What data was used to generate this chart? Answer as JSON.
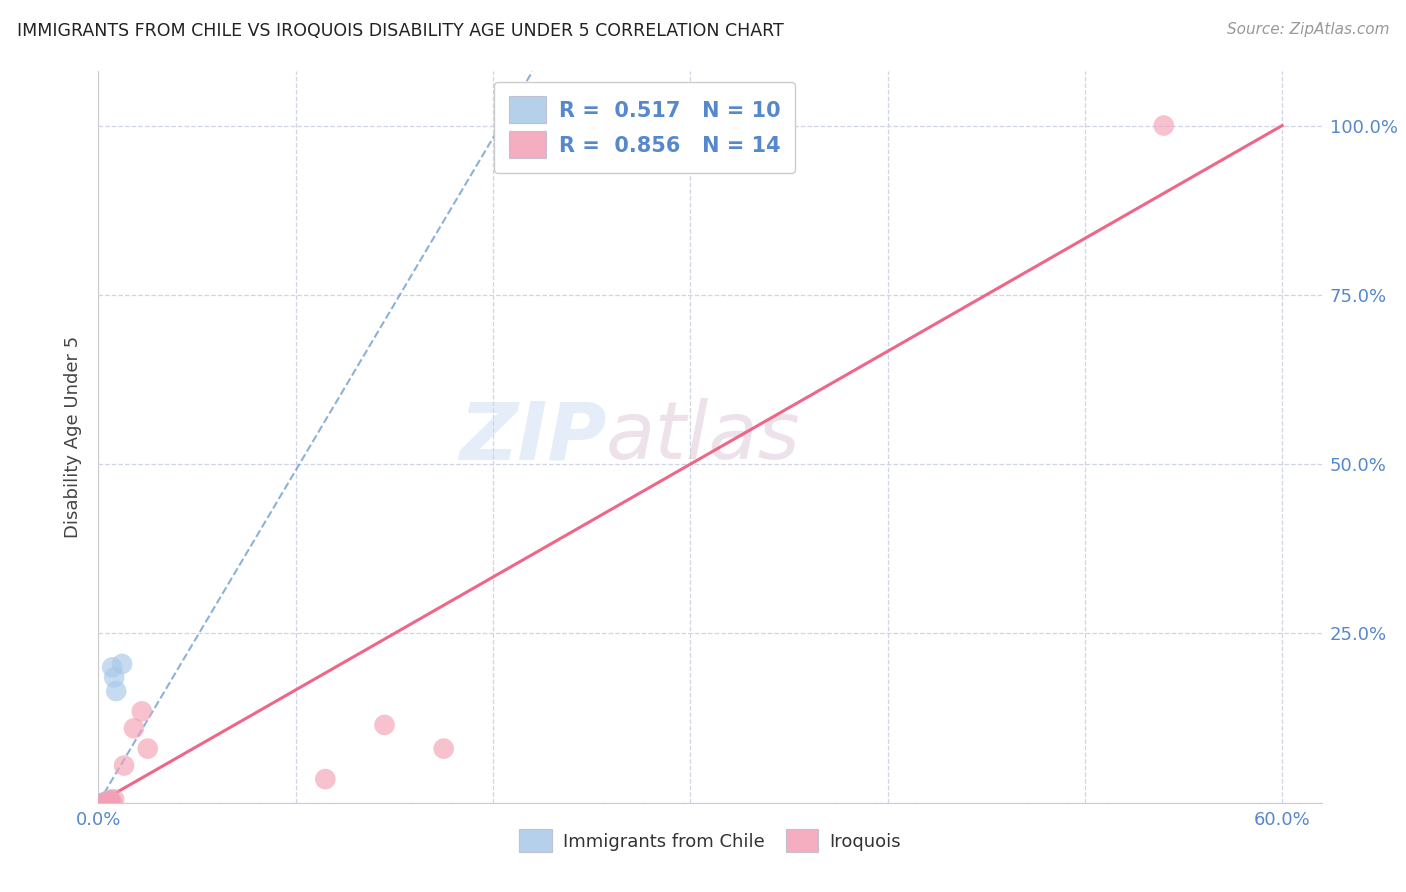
{
  "title": "IMMIGRANTS FROM CHILE VS IROQUOIS DISABILITY AGE UNDER 5 CORRELATION CHART",
  "source": "Source: ZipAtlas.com",
  "ylabel": "Disability Age Under 5",
  "xlim": [
    0.0,
    0.62
  ],
  "ylim": [
    0.0,
    1.08
  ],
  "xticks": [
    0.0,
    0.1,
    0.2,
    0.3,
    0.4,
    0.5,
    0.6
  ],
  "xticklabels": [
    "0.0%",
    "",
    "",
    "",
    "",
    "",
    "60.0%"
  ],
  "yticks_right": [
    0.25,
    0.5,
    0.75,
    1.0
  ],
  "yticklabels_right": [
    "25.0%",
    "50.0%",
    "75.0%",
    "100.0%"
  ],
  "watermark_zip": "ZIP",
  "watermark_atlas": "atlas",
  "legend_r1": "R =  0.517   N = 10",
  "legend_r2": "R =  0.856   N = 14",
  "chile_color": "#a8c8e8",
  "iroquois_color": "#f4a0b5",
  "chile_line_color": "#6699cc",
  "iroquois_line_color": "#ee6688",
  "axis_tick_color": "#5588cc",
  "grid_color": "#d0d4e8",
  "chile_points_x": [
    0.002,
    0.003,
    0.004,
    0.004,
    0.005,
    0.006,
    0.007,
    0.008,
    0.009,
    0.012
  ],
  "chile_points_y": [
    0.0,
    0.0,
    0.0,
    0.002,
    0.003,
    0.005,
    0.2,
    0.185,
    0.165,
    0.205
  ],
  "iroquois_points_x": [
    0.003,
    0.004,
    0.005,
    0.006,
    0.007,
    0.008,
    0.013,
    0.018,
    0.022,
    0.025,
    0.115,
    0.145,
    0.175,
    0.54
  ],
  "iroquois_points_y": [
    0.0,
    0.0,
    0.002,
    0.003,
    0.0,
    0.005,
    0.055,
    0.11,
    0.135,
    0.08,
    0.035,
    0.115,
    0.08,
    1.0
  ],
  "chile_trendline_x": [
    0.0,
    0.22
  ],
  "chile_trendline_y": [
    0.0,
    1.08
  ],
  "iroquois_trendline_x": [
    0.0,
    0.6
  ],
  "iroquois_trendline_y": [
    0.0,
    1.0
  ],
  "background_color": "#ffffff",
  "legend_label1": "Immigrants from Chile",
  "legend_label2": "Iroquois"
}
